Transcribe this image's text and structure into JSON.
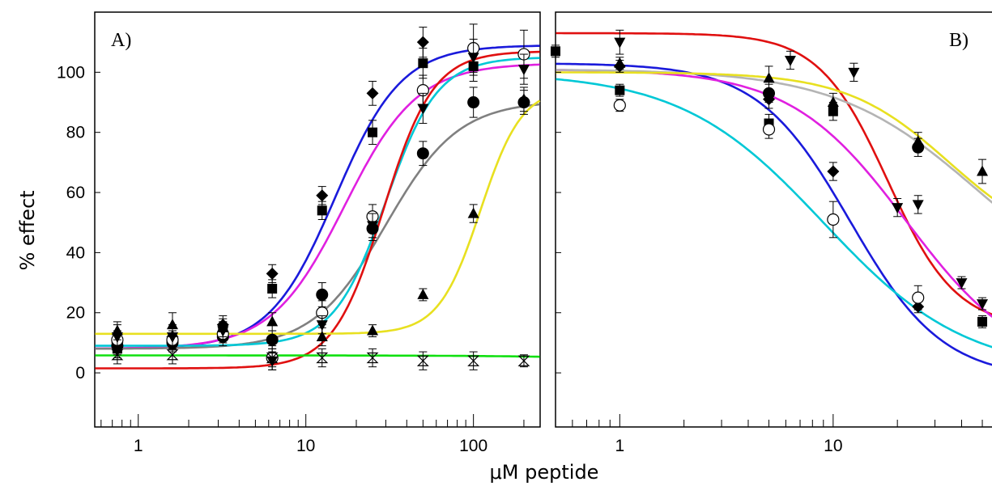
{
  "figure": {
    "ylabel": "% effect",
    "xlabel": "μM peptide"
  },
  "chart_data": [
    {
      "type": "scatter",
      "panel_label": "A)",
      "xscale": "log",
      "xlim": [
        0.55,
        250
      ],
      "ylim": [
        -18,
        120
      ],
      "xticks": [
        1,
        10,
        100
      ],
      "xtick_labels": [
        "1",
        "10",
        "100"
      ],
      "yticks": [
        0,
        20,
        40,
        60,
        80,
        100
      ],
      "ytick_labels": [
        "0",
        "20",
        "40",
        "60",
        "80",
        "100"
      ],
      "grid": false,
      "fit_curves": [
        {
          "color": "#1a1adb",
          "bottom": 8,
          "top": 109,
          "ec50": 15,
          "hill": 2.2
        },
        {
          "color": "#e020e0",
          "bottom": 8,
          "top": 103,
          "ec50": 17,
          "hill": 2.0
        },
        {
          "color": "#808080",
          "bottom": 8,
          "top": 90.5,
          "ec50": 30,
          "hill": 2.0
        },
        {
          "color": "#00c8d6",
          "bottom": 9,
          "top": 105,
          "ec50": 30,
          "hill": 2.8
        },
        {
          "color": "#e01010",
          "bottom": 1.5,
          "top": 107,
          "ec50": 29,
          "hill": 2.9
        },
        {
          "color": "#e8e020",
          "bottom": 13,
          "top": 95,
          "ec50": 110,
          "hill": 3.5
        },
        {
          "color": "#10e010",
          "bottom": 5.8,
          "top": 0,
          "ec50": 3000,
          "hill": 1.0
        }
      ],
      "series": [
        {
          "marker": "diamond",
          "points": [
            [
              0.75,
              10,
              3
            ],
            [
              1.6,
              12,
              3
            ],
            [
              3.2,
              16,
              3
            ],
            [
              6.3,
              33,
              3
            ],
            [
              12.5,
              59,
              3
            ],
            [
              25,
              93,
              4
            ],
            [
              50,
              110,
              5
            ]
          ]
        },
        {
          "marker": "square",
          "points": [
            [
              0.75,
              8,
              3
            ],
            [
              1.6,
              11,
              3
            ],
            [
              3.2,
              14,
              3
            ],
            [
              6.3,
              28,
              3
            ],
            [
              12.5,
              54,
              3
            ],
            [
              25,
              80,
              4
            ],
            [
              50,
              103,
              5
            ],
            [
              100,
              102,
              5
            ]
          ]
        },
        {
          "marker": "circle",
          "points": [
            [
              0.75,
              9,
              3
            ],
            [
              1.6,
              10,
              3
            ],
            [
              3.2,
              12,
              3
            ],
            [
              6.3,
              11,
              3
            ],
            [
              12.5,
              26,
              4
            ],
            [
              25,
              48,
              4
            ],
            [
              50,
              73,
              4
            ],
            [
              100,
              90,
              5
            ],
            [
              200,
              90,
              4
            ]
          ]
        },
        {
          "marker": "circle-open",
          "points": [
            [
              0.75,
              11,
              3
            ],
            [
              1.6,
              11,
              3
            ],
            [
              3.2,
              13,
              3
            ],
            [
              6.3,
              5,
              4
            ],
            [
              12.5,
              20,
              4
            ],
            [
              25,
              52,
              4
            ],
            [
              50,
              94,
              5
            ],
            [
              100,
              108,
              8
            ],
            [
              200,
              106,
              8
            ]
          ]
        },
        {
          "marker": "triangle",
          "points": [
            [
              0.75,
              14,
              3
            ],
            [
              1.6,
              16,
              4
            ],
            [
              3.2,
              15,
              3
            ],
            [
              6.3,
              17,
              3
            ],
            [
              12.5,
              12,
              3
            ],
            [
              25,
              14,
              2
            ],
            [
              50,
              26,
              2
            ],
            [
              100,
              53,
              3
            ],
            [
              200,
              91,
              4
            ]
          ]
        },
        {
          "marker": "triangle-down",
          "points": [
            [
              0.75,
              12,
              4
            ],
            [
              1.6,
              12,
              4
            ],
            [
              3.2,
              14,
              3
            ],
            [
              6.3,
              4,
              3
            ],
            [
              12.5,
              16,
              3
            ],
            [
              25,
              49,
              4
            ],
            [
              50,
              88,
              5
            ],
            [
              100,
              105,
              6
            ],
            [
              200,
              101,
              5
            ]
          ]
        },
        {
          "marker": "hourglass",
          "points": [
            [
              0.75,
              6,
              3
            ],
            [
              1.6,
              6,
              3
            ],
            [
              6.3,
              5,
              3
            ],
            [
              12.5,
              5,
              3
            ],
            [
              25,
              5,
              3
            ],
            [
              50,
              4,
              3
            ],
            [
              100,
              4,
              3
            ],
            [
              200,
              4,
              2
            ]
          ]
        }
      ]
    },
    {
      "type": "scatter",
      "panel_label": "B)",
      "xscale": "log",
      "xlim": [
        0.5,
        56
      ],
      "ylim": [
        -18,
        120
      ],
      "xticks": [
        1,
        10
      ],
      "xtick_labels": [
        "1",
        "10"
      ],
      "grid": false,
      "fit_curves": [
        {
          "color": "#e01010",
          "bottom": 15,
          "top": 113,
          "ec50": 18,
          "hill": -2.7
        },
        {
          "color": "#1a1adb",
          "bottom": -2,
          "top": 103,
          "ec50": 12,
          "hill": -2.0
        },
        {
          "color": "#e020e0",
          "bottom": 0,
          "top": 101,
          "ec50": 22,
          "hill": -1.6
        },
        {
          "color": "#00c8d6",
          "bottom": 0,
          "top": 100,
          "ec50": 9,
          "hill": -1.3
        },
        {
          "color": "#b4b4b4",
          "bottom": 20,
          "top": 101,
          "ec50": 48,
          "hill": -1.3
        },
        {
          "color": "#e8e020",
          "bottom": 40,
          "top": 100,
          "ec50": 35,
          "hill": -1.8
        }
      ],
      "series": [
        {
          "marker": "diamond",
          "points": [
            [
              1,
              102,
              2
            ],
            [
              5,
              91,
              3
            ],
            [
              10,
              67,
              3
            ],
            [
              25,
              22,
              2
            ]
          ]
        },
        {
          "marker": "square",
          "points": [
            [
              0.5,
              107,
              2
            ],
            [
              1,
              94,
              2
            ],
            [
              5,
              83,
              3
            ],
            [
              10,
              87,
              3
            ],
            [
              50,
              17,
              2
            ]
          ]
        },
        {
          "marker": "circle-open",
          "points": [
            [
              1,
              89,
              2
            ],
            [
              5,
              81,
              3
            ],
            [
              10,
              51,
              6
            ],
            [
              25,
              25,
              4
            ]
          ]
        },
        {
          "marker": "triangle",
          "points": [
            [
              1,
              103,
              2
            ],
            [
              5,
              98,
              4
            ],
            [
              10,
              90,
              3
            ],
            [
              25,
              77,
              3
            ],
            [
              50,
              67,
              4
            ]
          ]
        },
        {
          "marker": "triangle-down",
          "points": [
            [
              1,
              110,
              4
            ],
            [
              6.3,
              104,
              3
            ],
            [
              12.5,
              100,
              3
            ],
            [
              20,
              55,
              3
            ],
            [
              25,
              56,
              3
            ],
            [
              40,
              30,
              2
            ],
            [
              50,
              23,
              2
            ]
          ]
        },
        {
          "marker": "circle",
          "points": [
            [
              5,
              93,
              3
            ],
            [
              25,
              75,
              3
            ]
          ]
        }
      ]
    }
  ]
}
